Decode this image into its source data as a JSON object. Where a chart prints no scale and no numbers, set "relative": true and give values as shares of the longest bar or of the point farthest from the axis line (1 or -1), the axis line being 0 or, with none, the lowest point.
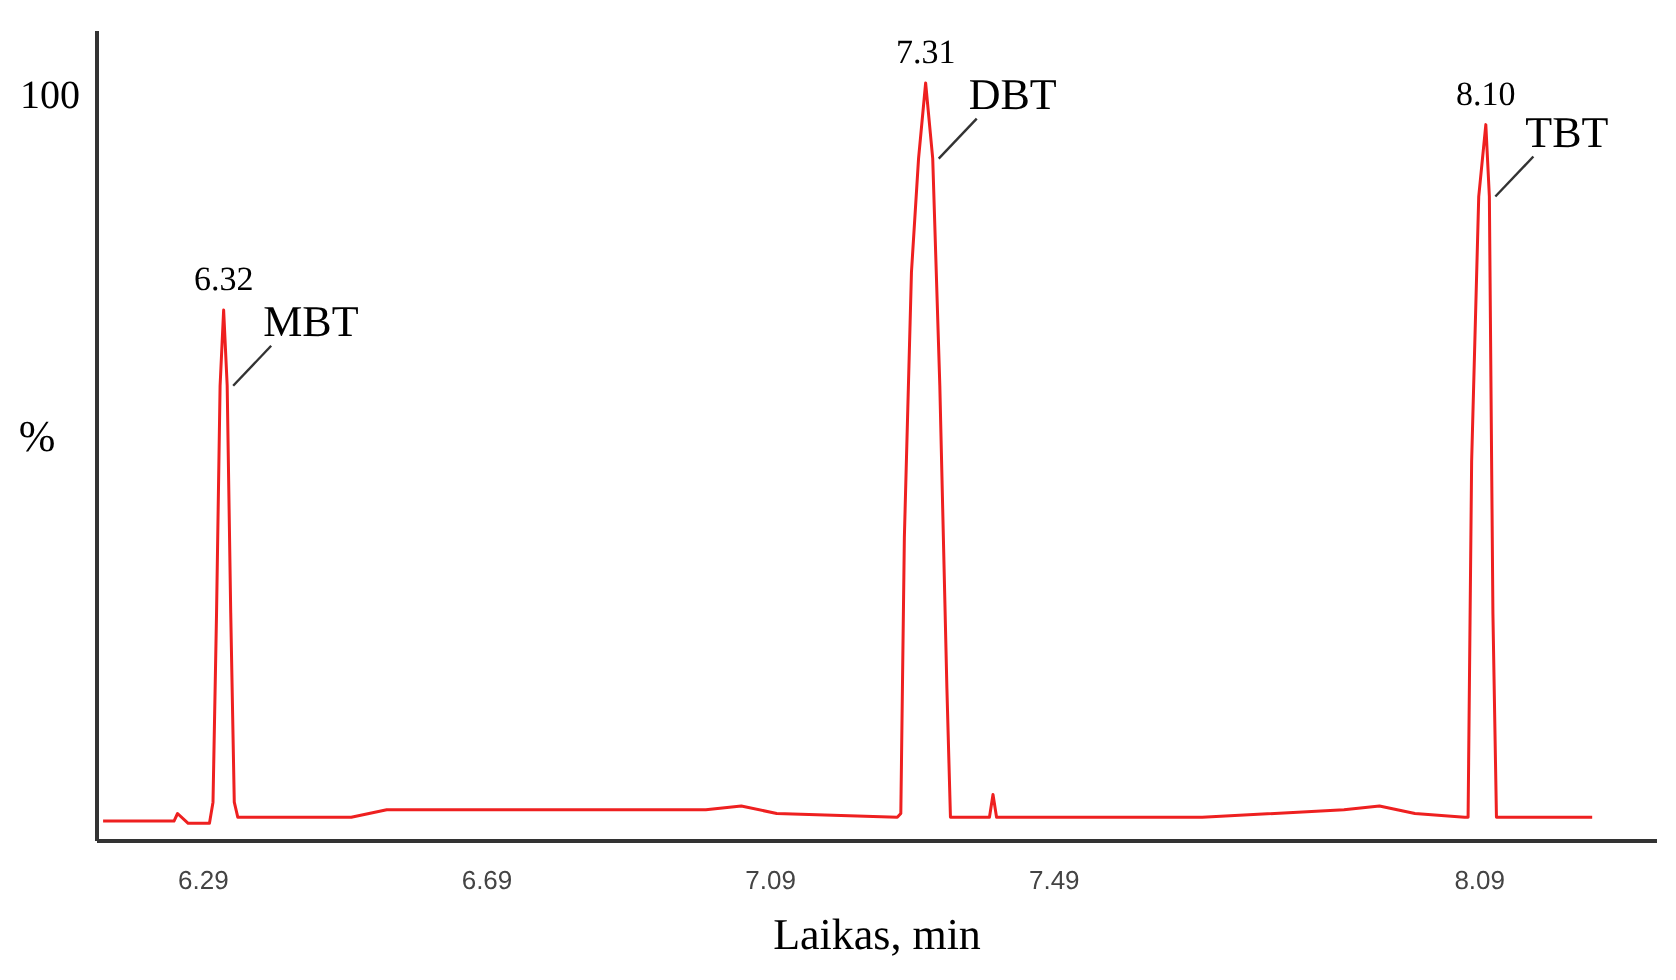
{
  "chart_data": {
    "type": "line",
    "xlabel": "Laikas, min",
    "ylabel": "%",
    "relative": true,
    "x": [
      6.15,
      6.25,
      6.255,
      6.27,
      6.3,
      6.305,
      6.31,
      6.315,
      6.32,
      6.325,
      6.33,
      6.335,
      6.34,
      6.5,
      6.55,
      7.0,
      7.05,
      7.1,
      7.27,
      7.275,
      7.28,
      7.29,
      7.3,
      7.31,
      7.32,
      7.33,
      7.34,
      7.345,
      7.4,
      7.405,
      7.41,
      7.7,
      7.9,
      7.95,
      8.0,
      8.07,
      8.075,
      8.08,
      8.09,
      8.1,
      8.105,
      8.11,
      8.115,
      8.25
    ],
    "series": [
      {
        "color": "#ee2020",
        "values": [
          0.025,
          0.025,
          0.035,
          0.022,
          0.022,
          0.05,
          0.3,
          0.6,
          0.7,
          0.6,
          0.3,
          0.05,
          0.03,
          0.03,
          0.04,
          0.04,
          0.045,
          0.035,
          0.03,
          0.035,
          0.4,
          0.75,
          0.9,
          1,
          0.9,
          0.6,
          0.2,
          0.03,
          0.03,
          0.06,
          0.03,
          0.03,
          0.04,
          0.045,
          0.035,
          0.03,
          0.03,
          0.5,
          0.85,
          0.945,
          0.85,
          0.3,
          0.03,
          0.03
        ]
      }
    ],
    "xlim": [
      6.14,
      8.34
    ],
    "xticks": [
      6.29,
      6.69,
      7.09,
      7.49,
      8.09
    ],
    "grid": false,
    "marker": "none",
    "line_style": "solid",
    "annotations": [
      "100",
      {
        "text": "6.32",
        "x": 6.32,
        "y": 0.7
      },
      {
        "text": "MBT",
        "x": 6.325,
        "y": 0.6
      },
      {
        "text": "7.31",
        "x": 7.31,
        "y": 1
      },
      {
        "text": "DBT",
        "x": 7.32,
        "y": 0.9
      },
      {
        "text": "8.10",
        "x": 8.1,
        "y": 0.945
      },
      {
        "text": "TBT",
        "x": 8.105,
        "y": 0.85
      }
    ]
  }
}
